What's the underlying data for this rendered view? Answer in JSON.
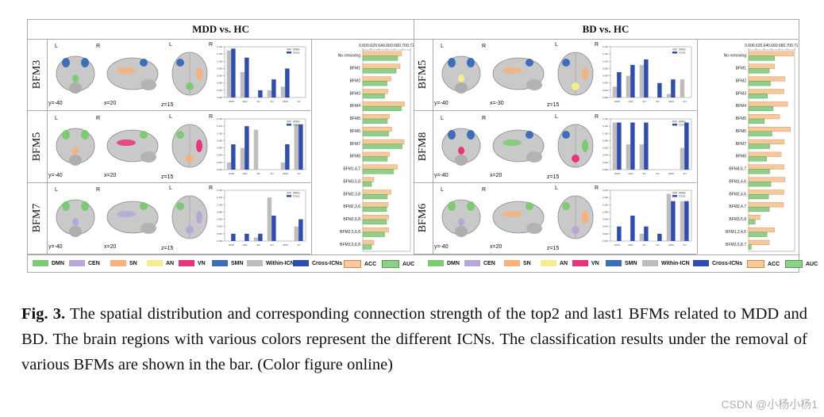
{
  "colors": {
    "DMN": "#7ccb74",
    "CEN": "#b9a6d9",
    "SN": "#f6b27a",
    "AN": "#f5ee8e",
    "VN": "#e9337a",
    "SMN": "#3f6db8",
    "within": "#bdbdbd",
    "cross": "#2f4cb0",
    "ACC": "#f7c99a",
    "AUC": "#8ed08a"
  },
  "left": {
    "title": "MDD vs. HC",
    "rows": [
      {
        "label": "BFM3",
        "y": "y=-40",
        "x": "x=20",
        "z": "z=15",
        "regions": [
          "SMN",
          "DMN",
          "SN"
        ]
      },
      {
        "label": "BFM5",
        "y": "y=-40",
        "x": "x=20",
        "z": "z=15",
        "regions": [
          "DMN",
          "SN",
          "VN"
        ]
      },
      {
        "label": "BFM7",
        "y": "y=-40",
        "x": "x=20",
        "z": "z=15",
        "regions": [
          "DMN",
          "CEN"
        ]
      }
    ],
    "mini_charts": [
      {
        "categories": [
          "DMN",
          "CEN",
          "SN",
          "AN",
          "SMN",
          "VN"
        ],
        "within": [
          0.13,
          0.07,
          0.0,
          0.02,
          0.03,
          0.0
        ],
        "cross": [
          0.135,
          0.11,
          0.02,
          0.05,
          0.08,
          0.0
        ]
      },
      {
        "categories": [
          "DMN",
          "CEN",
          "SN",
          "AN",
          "SMN",
          "VN"
        ],
        "within": [
          0.02,
          0.06,
          0.11,
          0.0,
          0.02,
          0.125
        ],
        "cross": [
          0.07,
          0.12,
          0.0,
          0.0,
          0.07,
          0.125
        ]
      },
      {
        "categories": [
          "DMN",
          "CEN",
          "SN",
          "AN",
          "SMN",
          "VN"
        ],
        "within": [
          0.0,
          0.0,
          0.01,
          0.12,
          0.0,
          0.04
        ],
        "cross": [
          0.02,
          0.02,
          0.02,
          0.07,
          0.0,
          0.06
        ]
      }
    ],
    "bar_chart": {
      "axis_ticks": [
        "0.60",
        "0.62",
        "0.64",
        "0.66",
        "0.68",
        "0.70",
        "0.72"
      ],
      "xmin": 0.6,
      "xmax": 0.72,
      "categories": [
        "No removing",
        "BFM1",
        "BFM2",
        "BFM3",
        "BFM4",
        "BFM5",
        "BFM6",
        "BFM7",
        "BFM8",
        "BFM1,4,7",
        "BFM3,5,8",
        "BFM2,3,8",
        "BFM2,3,6",
        "BFM2,6,8",
        "BFM2,5,6,8",
        "BFM3,5,6,8"
      ],
      "acc": [
        0.698,
        0.694,
        0.671,
        0.663,
        0.705,
        0.667,
        0.673,
        0.704,
        0.667,
        0.687,
        0.628,
        0.671,
        0.664,
        0.665,
        0.665,
        0.628
      ],
      "auc": [
        0.688,
        0.684,
        0.661,
        0.655,
        0.697,
        0.662,
        0.665,
        0.699,
        0.662,
        0.678,
        0.622,
        0.662,
        0.66,
        0.66,
        0.655,
        0.622
      ]
    }
  },
  "right": {
    "title": "BD vs. HC",
    "rows": [
      {
        "label": "BFM5",
        "y": "y=-40",
        "x": "x=-30",
        "z": "z=15",
        "regions": [
          "SMN",
          "AN",
          "SN"
        ]
      },
      {
        "label": "BFM8",
        "y": "y=-40",
        "x": "x=20",
        "z": "z=15",
        "regions": [
          "SMN",
          "VN",
          "DMN"
        ]
      },
      {
        "label": "BFM6",
        "y": "y=-40",
        "x": "x=20",
        "z": "z=15",
        "regions": [
          "DMN",
          "CEN",
          "SN"
        ]
      }
    ],
    "mini_charts": [
      {
        "categories": [
          "DMN",
          "CEN",
          "SN",
          "AN",
          "SMN",
          "VN"
        ],
        "within": [
          0.03,
          0.06,
          0.09,
          0.0,
          0.01,
          0.05
        ],
        "cross": [
          0.07,
          0.09,
          0.105,
          0.04,
          0.05,
          0.0
        ]
      },
      {
        "categories": [
          "DMN",
          "CEN",
          "SN",
          "AN",
          "SMN",
          "VN"
        ],
        "within": [
          0.13,
          0.07,
          0.07,
          0.0,
          0.0,
          0.06
        ],
        "cross": [
          0.13,
          0.13,
          0.13,
          0.0,
          0.0,
          0.13
        ]
      },
      {
        "categories": [
          "DMN",
          "CEN",
          "SN",
          "AN",
          "SMN",
          "VN"
        ],
        "within": [
          0.0,
          0.0,
          0.02,
          0.0,
          0.13,
          0.11
        ],
        "cross": [
          0.04,
          0.07,
          0.04,
          0.02,
          0.11,
          0.11
        ]
      }
    ],
    "bar_chart": {
      "axis_ticks": [
        "0.60",
        "0.62",
        "0.64",
        "0.66",
        "0.68",
        "0.70",
        "0.72"
      ],
      "xmin": 0.6,
      "xmax": 0.72,
      "categories": [
        "No removing",
        "BFM1",
        "BFM2",
        "BFM3",
        "BFM4",
        "BFM5",
        "BFM6",
        "BFM7",
        "BFM8",
        "BFM4,6,7",
        "BFM1,4,6",
        "BFM2,4,6",
        "BFM2,4,7",
        "BFM3,5,8",
        "BFM1,2,4,6",
        "BFM3,5,8,7"
      ],
      "acc": [
        0.717,
        0.668,
        0.695,
        0.692,
        0.702,
        0.681,
        0.709,
        0.693,
        0.685,
        0.692,
        0.695,
        0.692,
        0.691,
        0.63,
        0.668,
        0.654
      ],
      "auc": [
        0.668,
        0.654,
        0.657,
        0.649,
        0.664,
        0.641,
        0.661,
        0.655,
        0.647,
        0.655,
        0.658,
        0.652,
        0.654,
        0.617,
        0.648,
        0.607
      ]
    }
  },
  "legend": [
    {
      "key": "DMN",
      "label": "DMN"
    },
    {
      "key": "CEN",
      "label": "CEN"
    },
    {
      "key": "SN",
      "label": "SN"
    },
    {
      "key": "AN",
      "label": "AN"
    },
    {
      "key": "VN",
      "label": "VN"
    },
    {
      "key": "SMN",
      "label": "SMN"
    },
    {
      "key": "within",
      "label": "Within-ICN"
    },
    {
      "key": "cross",
      "label": "Cross-ICNs"
    },
    {
      "key": "ACC",
      "label": "ACC"
    },
    {
      "key": "AUC",
      "label": "AUC"
    }
  ],
  "mini_legend": {
    "within": "Within",
    "cross": "Cross"
  },
  "caption": {
    "label": "Fig. 3.",
    "text": " The spatial distribution and corresponding connection strength of the top2 and last1 BFMs related to MDD and BD. The brain regions with various colors represent the different ICNs. The classification results under the removal of various BFMs are shown in the bar. (Color figure online)"
  },
  "watermark": "CSDN @小杨小杨1"
}
